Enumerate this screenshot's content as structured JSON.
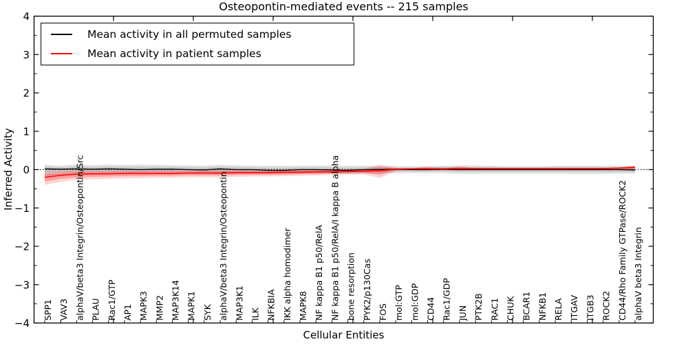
{
  "title": "Osteopontin-mediated events -- 215 samples",
  "axes": {
    "y_label": "Inferred Activity",
    "x_label": "Cellular Entities",
    "y_ticks": [
      "4",
      "3",
      "2",
      "1",
      "0",
      "−1",
      "−2",
      "−3",
      "−4"
    ],
    "y_tick_values": [
      4,
      3,
      2,
      1,
      0,
      -1,
      -2,
      -3,
      -4
    ]
  },
  "legend": {
    "items": [
      {
        "label": "Mean activity in all permuted samples",
        "color": "#000000"
      },
      {
        "label": "Mean activity in patient samples",
        "color": "#ff0000"
      }
    ]
  },
  "chart_data": {
    "type": "line",
    "title": "Osteopontin-mediated events -- 215 samples",
    "xlabel": "Cellular Entities",
    "ylabel": "Inferred Activity",
    "ylim": [
      -4,
      4
    ],
    "grid": false,
    "legend_position": "upper left",
    "zero_line": "dotted",
    "categories": [
      "SPP1",
      "VAV3",
      "alphaV/beta3 Integrin/Osteopontin/Src",
      "PLAU",
      "Rac1/GTP",
      "AP1",
      "MAPK3",
      "MMP2",
      "MAP3K14",
      "MAPK1",
      "SYK",
      "alphaV/beta3 Integrin/Osteopontin",
      "MAP3K1",
      "ILK",
      "NFKBIA",
      "IKK alpha homodimer",
      "MAPK8",
      "NF kappa B1 p50/RelA",
      "NF kappa B1 p50/RelA/I kappa B alpha",
      "bone resorption",
      "PYK2/p130Cas",
      "FOS",
      "mol:GTP",
      "mol:GDP",
      "CD44",
      "Rac1/GDP",
      "JUN",
      "PTK2B",
      "RAC1",
      "CHUK",
      "BCAR1",
      "NFKB1",
      "RELA",
      "ITGAV",
      "ITGB3",
      "ROCK2",
      "CD44/Rho Family GTPase/ROCK2",
      "alphaV beta3 Integrin"
    ],
    "series": [
      {
        "name": "Mean activity in all permuted samples",
        "color": "#000000",
        "values": [
          0.02,
          0.01,
          0.02,
          0.01,
          0.02,
          0.01,
          0.0,
          0.01,
          0.01,
          0.0,
          -0.01,
          0.02,
          0.0,
          0.0,
          -0.02,
          -0.02,
          0.0,
          0.0,
          -0.01,
          -0.02,
          0.0,
          0.0,
          0.01,
          0.0,
          0.0,
          0.01,
          0.0,
          0.0,
          0.0,
          0.0,
          0.0,
          0.0,
          0.0,
          0.0,
          0.0,
          0.0,
          0.0,
          -0.01
        ],
        "band_upper": [
          0.12,
          0.1,
          0.14,
          0.11,
          0.13,
          0.12,
          0.13,
          0.12,
          0.11,
          0.11,
          0.1,
          0.12,
          0.11,
          0.1,
          0.1,
          0.1,
          0.1,
          0.1,
          0.11,
          0.1,
          0.1,
          0.1,
          0.09,
          0.09,
          0.09,
          0.1,
          0.11,
          0.11,
          0.1,
          0.09,
          0.09,
          0.09,
          0.1,
          0.1,
          0.1,
          0.1,
          0.1,
          0.1
        ],
        "band_lower": [
          -0.16,
          -0.14,
          -0.14,
          -0.13,
          -0.12,
          -0.12,
          -0.12,
          -0.12,
          -0.12,
          -0.11,
          -0.11,
          -0.12,
          -0.11,
          -0.11,
          -0.11,
          -0.12,
          -0.11,
          -0.11,
          -0.1,
          -0.11,
          -0.1,
          -0.1,
          -0.09,
          -0.09,
          -0.09,
          -0.09,
          -0.11,
          -0.11,
          -0.1,
          -0.1,
          -0.1,
          -0.1,
          -0.1,
          -0.11,
          -0.11,
          -0.11,
          -0.1,
          -0.11
        ]
      },
      {
        "name": "Mean activity in patient samples",
        "color": "#ff0000",
        "values": [
          -0.2,
          -0.15,
          -0.12,
          -0.11,
          -0.11,
          -0.1,
          -0.1,
          -0.1,
          -0.1,
          -0.09,
          -0.09,
          -0.09,
          -0.08,
          -0.08,
          -0.08,
          -0.07,
          -0.07,
          -0.06,
          -0.06,
          -0.05,
          -0.04,
          -0.03,
          0.01,
          0.02,
          0.02,
          0.02,
          0.03,
          0.03,
          0.03,
          0.03,
          0.03,
          0.03,
          0.03,
          0.03,
          0.03,
          0.03,
          0.04,
          0.06
        ],
        "band_upper": [
          -0.05,
          -0.04,
          -0.02,
          -0.03,
          -0.02,
          -0.02,
          -0.02,
          -0.02,
          -0.02,
          -0.02,
          -0.02,
          -0.01,
          -0.01,
          -0.01,
          -0.01,
          0.0,
          0.0,
          0.0,
          0.01,
          0.01,
          0.02,
          0.13,
          0.05,
          0.04,
          0.08,
          0.05,
          0.08,
          0.05,
          0.05,
          0.05,
          0.05,
          0.05,
          0.05,
          0.05,
          0.05,
          0.05,
          0.06,
          0.1
        ],
        "band_lower": [
          -0.4,
          -0.32,
          -0.27,
          -0.25,
          -0.24,
          -0.23,
          -0.22,
          -0.21,
          -0.21,
          -0.2,
          -0.2,
          -0.2,
          -0.19,
          -0.18,
          -0.18,
          -0.17,
          -0.16,
          -0.15,
          -0.14,
          -0.13,
          -0.12,
          -0.22,
          -0.04,
          -0.02,
          -0.03,
          -0.02,
          -0.03,
          -0.02,
          -0.02,
          -0.02,
          -0.02,
          -0.02,
          -0.02,
          -0.02,
          -0.02,
          -0.02,
          -0.02,
          -0.03
        ]
      }
    ]
  }
}
